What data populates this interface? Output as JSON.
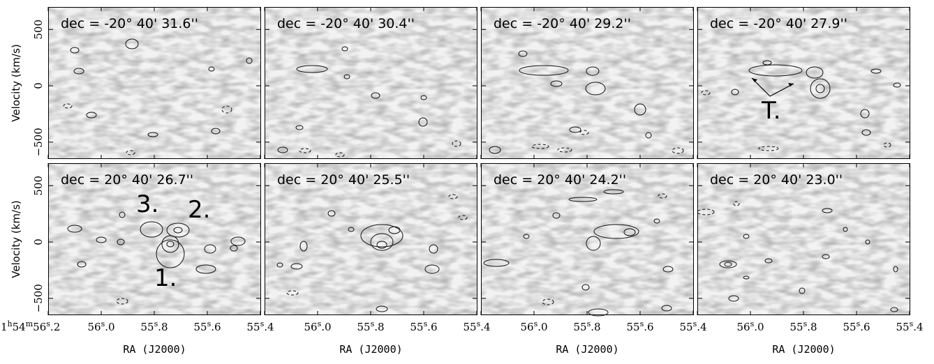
{
  "chart_data": {
    "type": "heatmap",
    "description_kind": "position-velocity contour panels",
    "grid": {
      "rows": 2,
      "cols": 4
    },
    "xlabel": "RA (J2000)",
    "ylabel": "Velocity (km/s)",
    "x_tick_labels": [
      "1h54m56.s2",
      "56.s0",
      "55.s8",
      "55.s6",
      "55.s4"
    ],
    "x_tick_labels_inner": [
      "56.s0",
      "55.s8",
      "55.s6",
      "55.s4"
    ],
    "y_tick_labels": [
      "500",
      "0",
      "−500"
    ],
    "ylim": [
      -650,
      700
    ],
    "panels": [
      {
        "label": "dec = -20° 40' 31.6''"
      },
      {
        "label": "dec = -20° 40' 30.4''"
      },
      {
        "label": "dec = -20° 40' 29.2''"
      },
      {
        "label": "dec = -20° 40' 27.9''",
        "annotations": [
          "T."
        ]
      },
      {
        "label": "dec = 20° 40' 26.7''",
        "annotations": [
          "1.",
          "2.",
          "3."
        ]
      },
      {
        "label": "dec = 20° 40' 25.5''"
      },
      {
        "label": "dec = 20° 40' 24.2''"
      },
      {
        "label": "dec = 20° 40' 23.0''"
      }
    ]
  },
  "xaxis_titles": [
    "RA (J2000)",
    "RA (J2000)",
    "RA (J2000)",
    "RA (J2000)"
  ],
  "ytitle": "Velocity (km/s)",
  "first_tick": {
    "main": "1",
    "h": "h",
    "mid": "54",
    "m": "m",
    "sec": "56",
    "s": "s",
    "frac": ".2"
  },
  "inner_ticks": [
    {
      "sec": "56",
      "s": "s",
      "frac": ".0"
    },
    {
      "sec": "55",
      "s": "s",
      "frac": ".8"
    },
    {
      "sec": "55",
      "s": "s",
      "frac": ".6"
    },
    {
      "sec": "55",
      "s": "s",
      "frac": ".4"
    }
  ],
  "y_ticks": [
    "500",
    "0",
    "−500"
  ],
  "annotations": {
    "t": "T.",
    "one": "1.",
    "two": "2.",
    "three": "3."
  }
}
